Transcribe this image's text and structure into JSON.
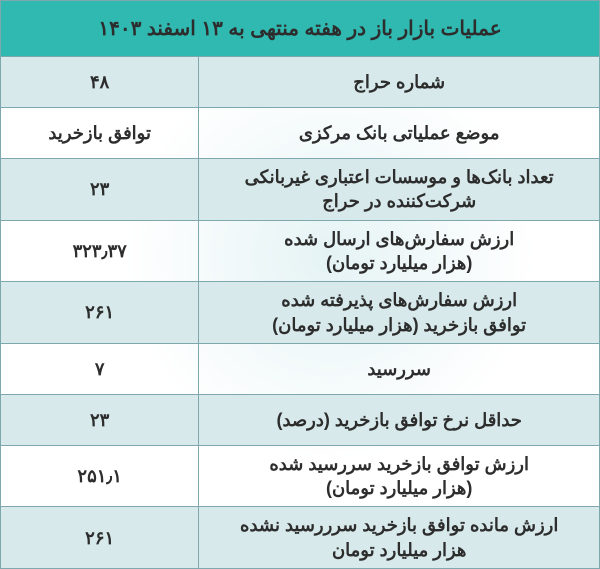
{
  "table": {
    "title": "عملیات بازار باز در هفته منتهی به ۱۳ اسفند ۱۴۰۳",
    "header_bg": "#2fb9b0",
    "row_alt_bg": "#d7e9eb",
    "border_color": "#7fa8ae",
    "text_color": "#2d2d2d",
    "title_fontsize": 20,
    "cell_fontsize": 18,
    "rows": [
      {
        "label": "شماره حراج",
        "value": "۴۸",
        "alt": true
      },
      {
        "label": "موضع عملیاتی بانک مرکزی",
        "value": "توافق بازخرید",
        "alt": false
      },
      {
        "label": "تعداد بانک‌ها و موسسات اعتباری غیربانکی شرکت‌کننده در حراج",
        "value": "۲۳",
        "alt": true
      },
      {
        "label": "ارزش سفارش‌های ارسال شده\n(هزار میلیارد تومان)",
        "value": "۳۲۳٫۳۷",
        "alt": false
      },
      {
        "label": "ارزش سفارش‌های پذیرفته شده\nتوافق بازخرید (هزار میلیارد تومان)",
        "value": "۲۶۱",
        "alt": true
      },
      {
        "label": "سررسید",
        "value": "۷",
        "alt": false
      },
      {
        "label": "حداقل نرخ توافق بازخرید (درصد)",
        "value": "۲۳",
        "alt": true
      },
      {
        "label": "ارزش توافق بازخرید سررسید شده\n(هزار میلیارد تومان)",
        "value": "۲۵۱٫۱",
        "alt": false
      },
      {
        "label": "ارزش مانده توافق بازخرید سرررسید نشده\nهزار میلیارد تومان",
        "value": "۲۶۱",
        "alt": true
      }
    ]
  }
}
